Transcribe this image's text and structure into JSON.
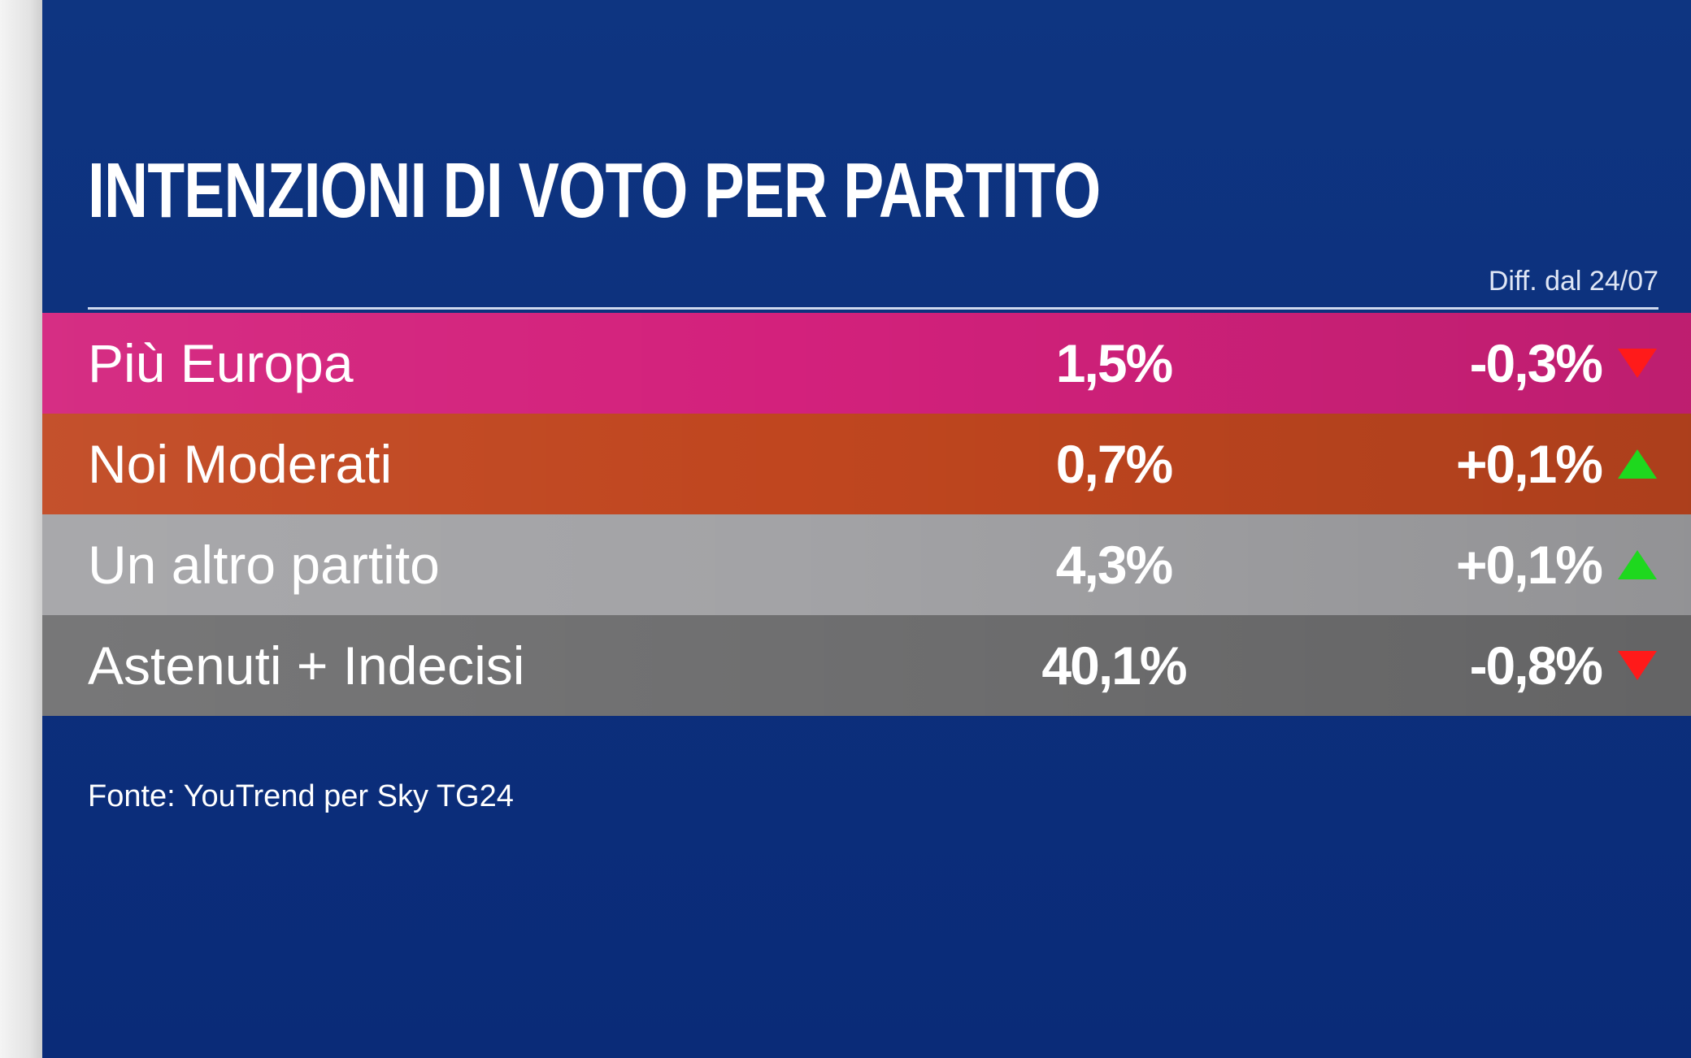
{
  "colors": {
    "background": "#0d2f7f",
    "up": "#1ed81e",
    "down": "#ff1a1a"
  },
  "header": {
    "title": "INTENZIONI DI VOTO PER PARTITO",
    "diff_label": "Diff. dal 24/07"
  },
  "rows": [
    {
      "name": "Più Europa",
      "value": "1,5%",
      "change": "-0,3%",
      "trend": "down",
      "color": "#d3217c",
      "icon": "down-triangle-icon"
    },
    {
      "name": "Noi Moderati",
      "value": "0,7%",
      "change": "+0,1%",
      "trend": "up",
      "color": "#c0461f",
      "icon": "up-triangle-icon"
    },
    {
      "name": "Un altro partito",
      "value": "4,3%",
      "change": "+0,1%",
      "trend": "up",
      "color": "#a3a3a6",
      "icon": "up-triangle-icon"
    },
    {
      "name": "Astenuti + Indecisi",
      "value": "40,1%",
      "change": "-0,8%",
      "trend": "down",
      "color": "#6f6f70",
      "icon": "down-triangle-icon"
    }
  ],
  "footer": {
    "source": "Fonte: YouTrend per Sky TG24"
  },
  "chart_data": {
    "type": "table",
    "title": "INTENZIONI DI VOTO PER PARTITO",
    "columns": [
      "",
      "",
      "Diff. dal 24/07"
    ],
    "categories": [
      "Più Europa",
      "Noi Moderati",
      "Un altro partito",
      "Astenuti + Indecisi"
    ],
    "series": [
      {
        "values": [
          1.5,
          0.7,
          4.3,
          40.1
        ]
      },
      {
        "values": [
          -0.3,
          0.1,
          0.1,
          -0.8
        ]
      }
    ]
  }
}
